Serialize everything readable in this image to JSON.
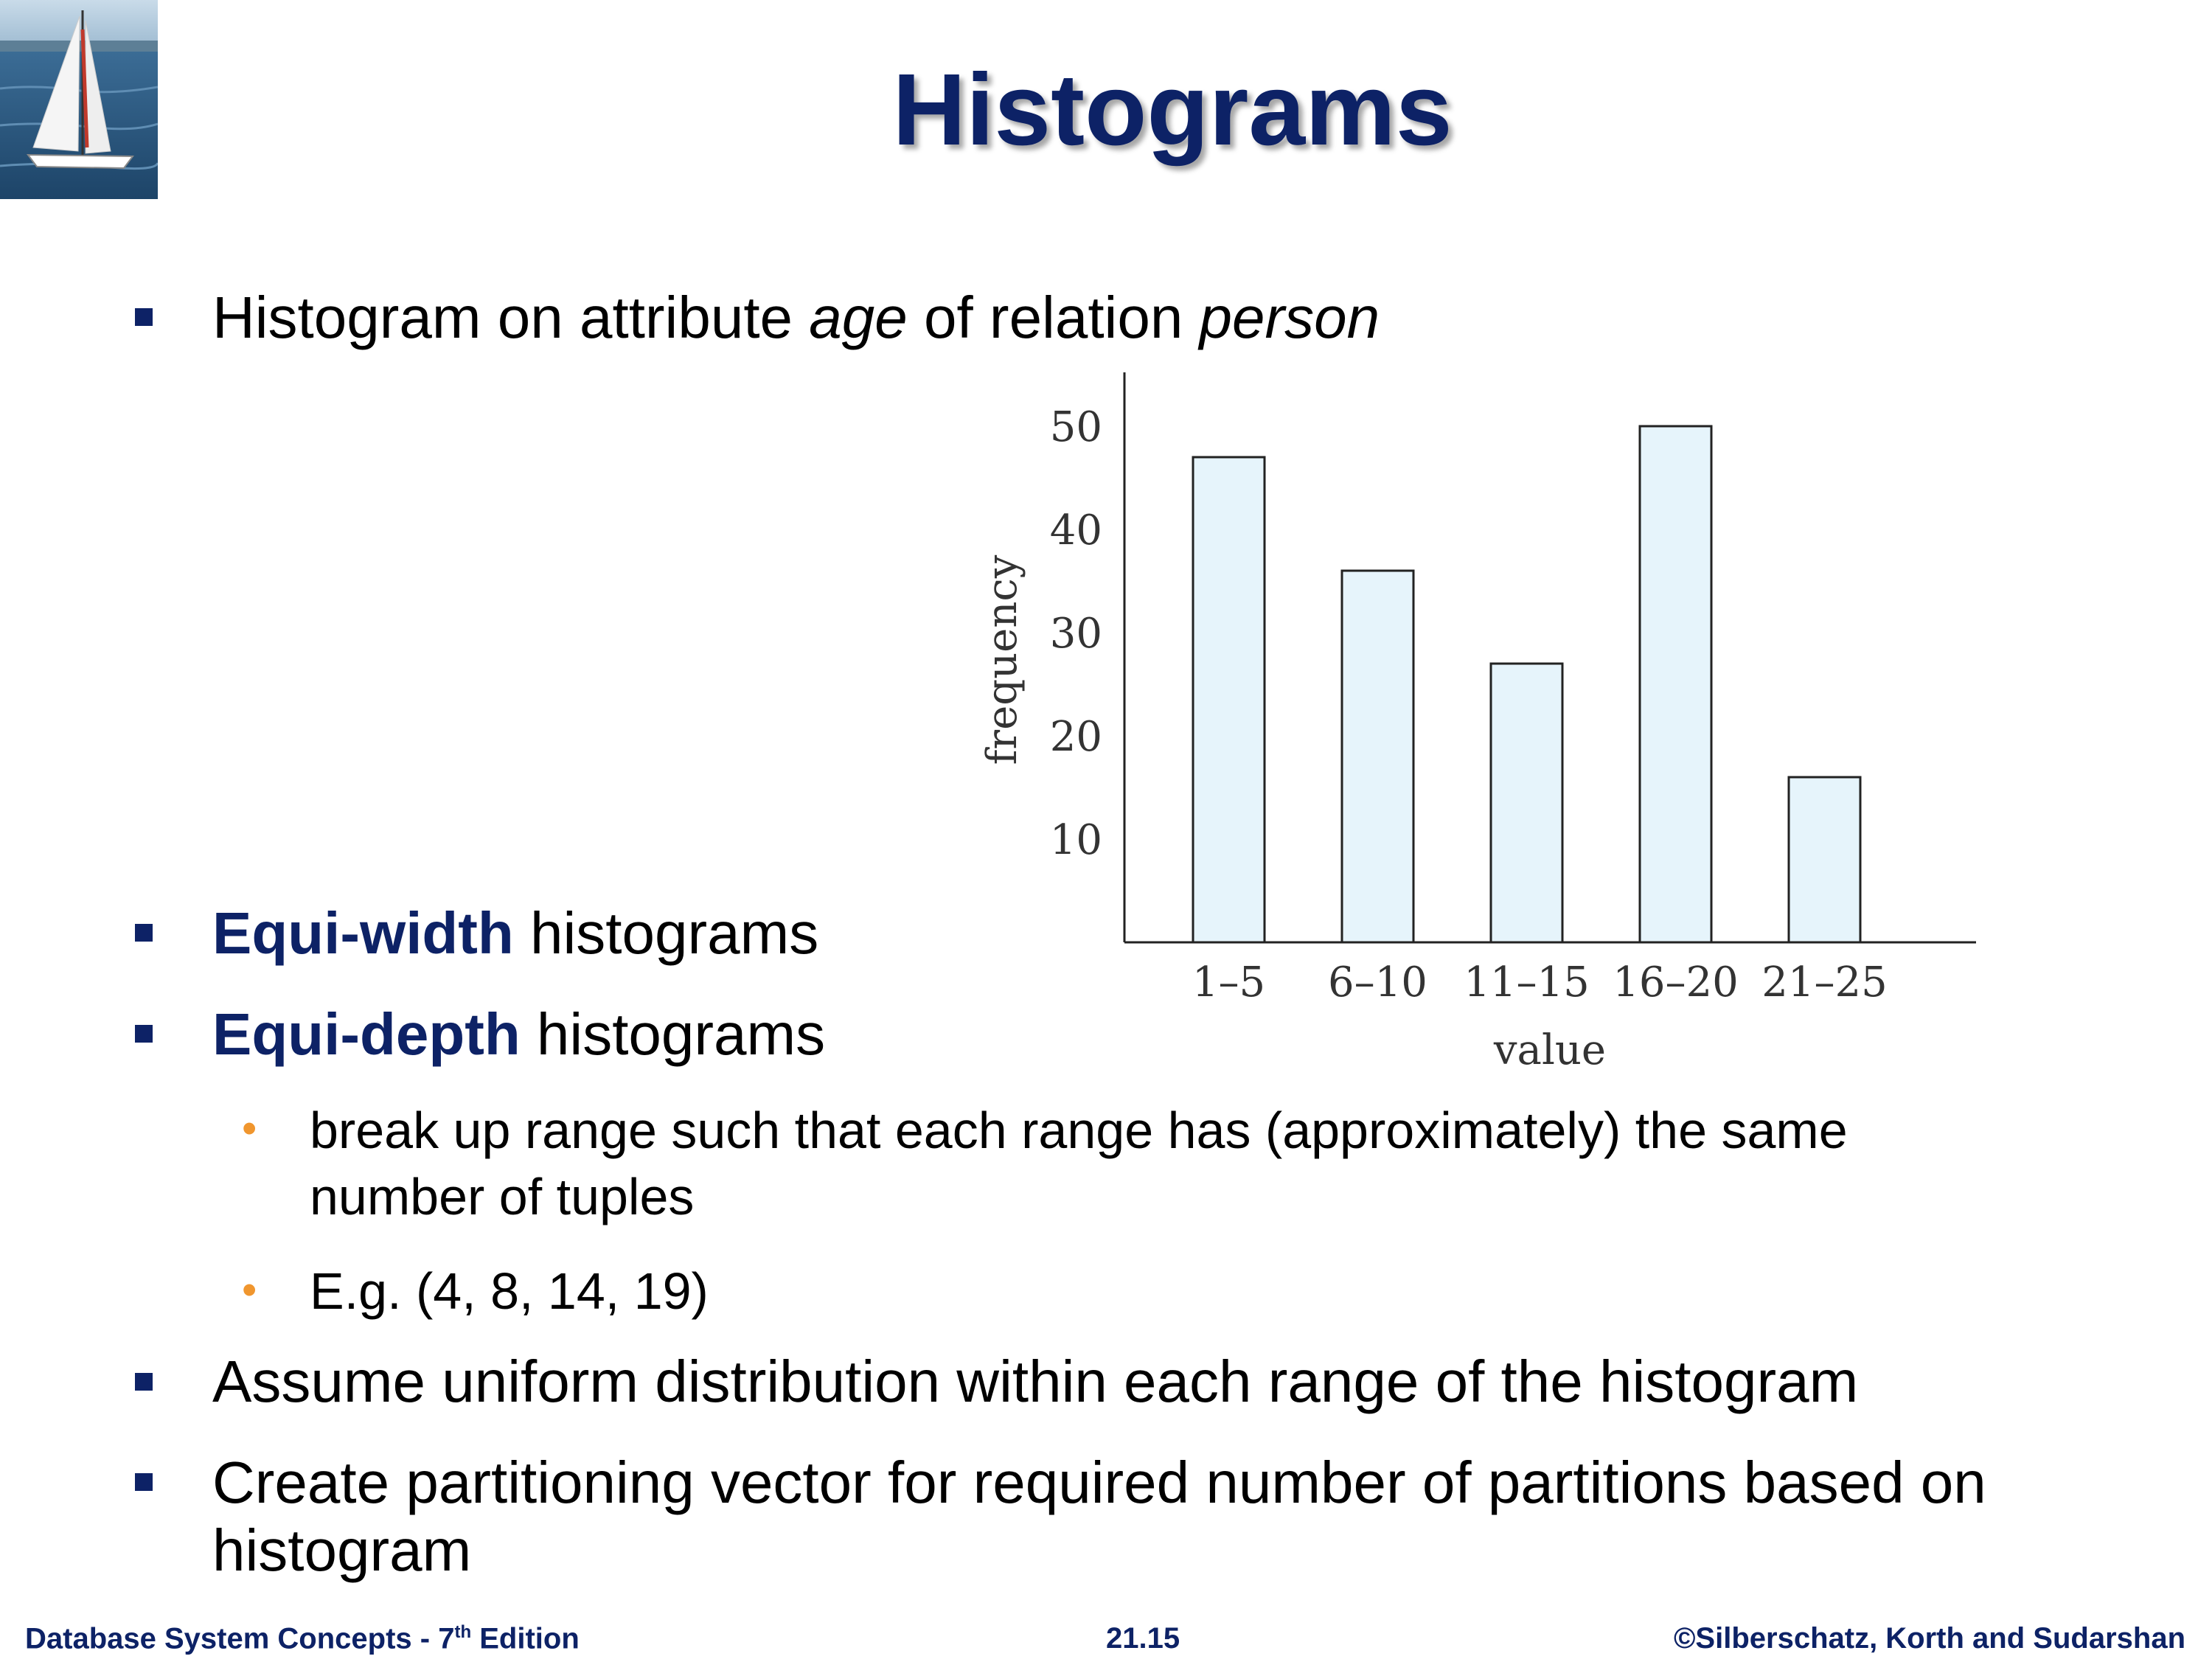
{
  "slide": {
    "title": "Histograms",
    "bullets": [
      {
        "pre": "Histogram on attribute ",
        "em1": "age",
        "mid": " of relation ",
        "em2": "person"
      },
      {
        "strong": "Equi-width",
        "rest": " histograms"
      },
      {
        "strong": "Equi-depth",
        "rest": " histograms"
      },
      {
        "text": "Assume uniform distribution within each range of the histogram"
      },
      {
        "line1": "Create partitioning vector for required number of partitions based on",
        "line2": "histogram"
      }
    ],
    "sub_bullets": [
      {
        "line1": "break up range such that each range has (approximately) the same",
        "line2": "number of tuples"
      },
      {
        "text": "E.g. (4, 8, 14, 19)"
      }
    ]
  },
  "footer": {
    "left_main": "Database System Concepts - 7",
    "left_sup": "th",
    "left_end": " Edition",
    "center": "21.15",
    "right": "©Silberschatz, Korth and Sudarshan"
  },
  "chart_data": {
    "type": "bar",
    "categories": [
      "1–5",
      "6–10",
      "11–15",
      "16–20",
      "21–25"
    ],
    "values": [
      47,
      36,
      27,
      50,
      16
    ],
    "xlabel": "value",
    "ylabel": "frequency",
    "yticks": [
      "10",
      "20",
      "30",
      "40",
      "50"
    ],
    "ylim": [
      0,
      55
    ],
    "bar_color": "#e6f4fb",
    "grid": false
  }
}
